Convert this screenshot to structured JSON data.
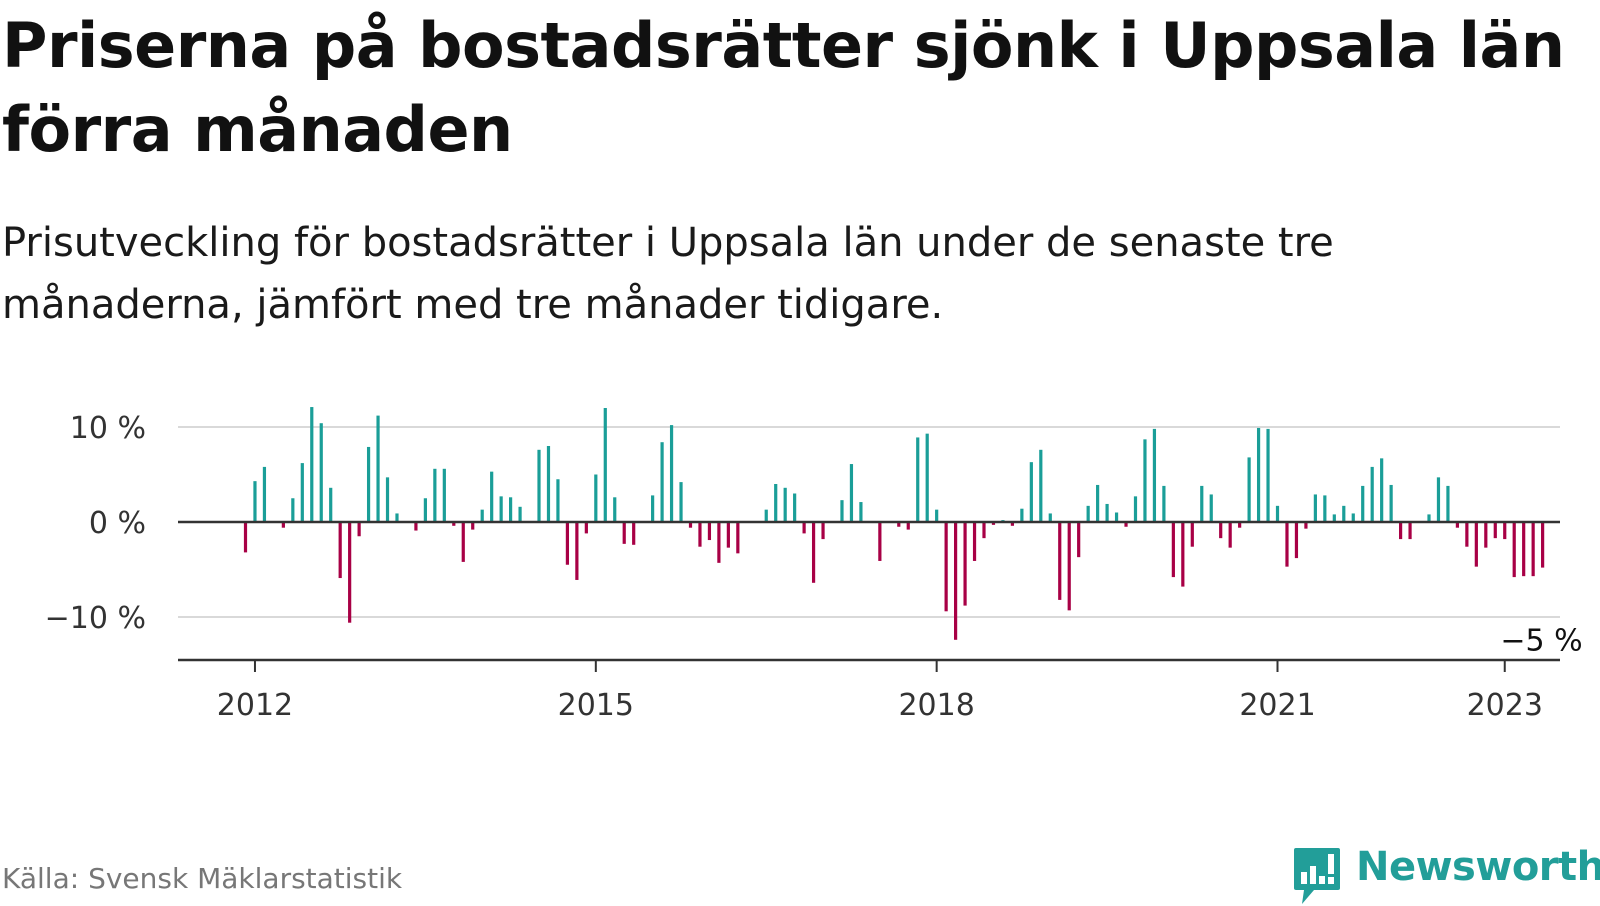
{
  "title": "Priserna på bostadsrätter sjönk i Uppsala län förra månaden",
  "subtitle": "Prisutveckling för bostadsrätter i Uppsala län under de senaste tre månaderna, jämfört med tre månader tidigare.",
  "source": "Källa: Svensk Mäklarstatistik",
  "brand": {
    "name": "Newsworthy",
    "logo_icon": "newsworthy-chart-bubble-icon"
  },
  "colors": {
    "positive": "#1a9e98",
    "negative": "#a80045",
    "brand": "#229e99",
    "grid": "#d9d9d9",
    "axis": "#333333"
  },
  "chart_data": {
    "type": "bar",
    "title": "Priserna på bostadsrätter sjönk i Uppsala län förra månaden",
    "xlabel": "",
    "ylabel": "",
    "ylim": [
      -14.5,
      14.5
    ],
    "grid": true,
    "legend": "none",
    "start": "2011-12",
    "y_ticks": [
      {
        "value": 10,
        "label": "10 %"
      },
      {
        "value": 0,
        "label": "0 %"
      },
      {
        "value": -10,
        "label": "−10 %"
      }
    ],
    "x_ticks": [
      {
        "date": "2012-01",
        "label": "2012"
      },
      {
        "date": "2015-01",
        "label": "2015"
      },
      {
        "date": "2018-01",
        "label": "2018"
      },
      {
        "date": "2021-01",
        "label": "2021"
      },
      {
        "date": "2023-01",
        "label": "2023"
      }
    ],
    "end_label": "−5 %",
    "series": [
      {
        "values": [
          -3.2,
          4.3,
          5.8,
          0,
          -0.6,
          2.5,
          6.2,
          12.1,
          10.4,
          3.6,
          -5.9,
          -10.6,
          -1.5,
          7.9,
          11.2,
          4.7,
          0.9,
          0,
          -0.9,
          2.5,
          5.6,
          5.6,
          -0.4,
          -4.2,
          -0.8,
          1.3,
          5.3,
          2.7,
          2.6,
          1.6,
          0,
          7.6,
          8.0,
          4.5,
          -4.5,
          -6.1,
          -1.2,
          5.0,
          12.0,
          2.6,
          -2.3,
          -2.4,
          0,
          2.8,
          8.4,
          10.2,
          4.2,
          -0.6,
          -2.6,
          -1.9,
          -4.3,
          -2.7,
          -3.3,
          0,
          0,
          1.3,
          4.0,
          3.6,
          3.0,
          -1.2,
          -6.4,
          -1.8,
          0,
          2.3,
          6.1,
          2.1,
          0,
          -4.1,
          0,
          -0.5,
          -0.8,
          8.9,
          9.3,
          1.3,
          -9.4,
          -12.4,
          -8.8,
          -4.1,
          -1.7,
          -0.3,
          0.2,
          -0.4,
          1.4,
          6.3,
          7.6,
          0.9,
          -8.2,
          -9.3,
          -3.7,
          1.7,
          3.9,
          1.9,
          1.0,
          -0.5,
          2.7,
          8.7,
          9.8,
          3.8,
          -5.8,
          -6.8,
          -2.6,
          3.8,
          2.9,
          -1.7,
          -2.7,
          -0.6,
          6.8,
          9.9,
          9.8,
          1.7,
          -4.7,
          -3.8,
          -0.7,
          2.9,
          2.8,
          0.8,
          1.7,
          0.9,
          3.8,
          5.8,
          6.7,
          3.9,
          -1.8,
          -1.8,
          0,
          0.8,
          4.7,
          3.8,
          -0.6,
          -2.6,
          -4.7,
          -2.7,
          -1.7,
          -1.8,
          -5.8,
          -5.7,
          -5.7,
          -4.8
        ]
      }
    ]
  }
}
